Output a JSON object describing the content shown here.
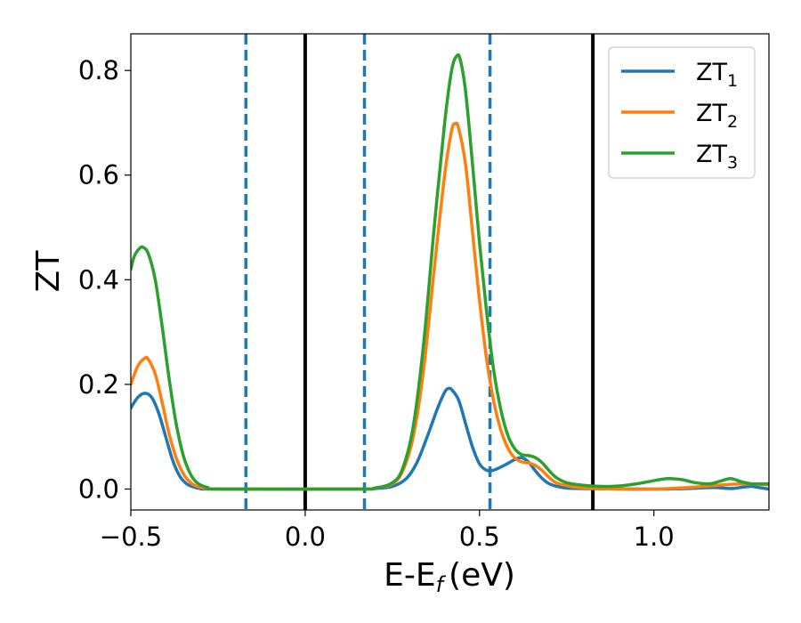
{
  "chart_data": {
    "type": "line",
    "xlabel": "E-E",
    "xlabel_sub": "f",
    "xlabel_unit": "(eV)",
    "ylabel": "ZT",
    "xlim": [
      -0.5,
      1.33
    ],
    "ylim": [
      -0.04,
      0.87
    ],
    "xticks": [
      -0.5,
      0.0,
      0.5,
      1.0
    ],
    "xtick_labels": [
      "−0.5",
      "0.0",
      "0.5",
      "1.0"
    ],
    "yticks": [
      0.0,
      0.2,
      0.4,
      0.6,
      0.8
    ],
    "ytick_labels": [
      "0.0",
      "0.2",
      "0.4",
      "0.6",
      "0.8"
    ],
    "grid": false,
    "legend_position": "top-right",
    "vlines": [
      {
        "x": 0.0,
        "style": "solid",
        "color": "#000000"
      },
      {
        "x": 0.825,
        "style": "solid",
        "color": "#000000"
      },
      {
        "x": -0.17,
        "style": "dashed",
        "color": "#1f77b4"
      },
      {
        "x": 0.17,
        "style": "dashed",
        "color": "#1f77b4"
      },
      {
        "x": 0.53,
        "style": "dashed",
        "color": "#1f77b4"
      }
    ],
    "series": [
      {
        "name": "ZT",
        "sub": "1",
        "color": "#1f77b4",
        "points": [
          [
            -0.5,
            0.155
          ],
          [
            -0.48,
            0.175
          ],
          [
            -0.46,
            0.183
          ],
          [
            -0.44,
            0.175
          ],
          [
            -0.42,
            0.145
          ],
          [
            -0.4,
            0.1
          ],
          [
            -0.38,
            0.055
          ],
          [
            -0.36,
            0.025
          ],
          [
            -0.34,
            0.01
          ],
          [
            -0.32,
            0.004
          ],
          [
            -0.3,
            0.001
          ],
          [
            -0.25,
            0.0
          ],
          [
            0.15,
            0.0
          ],
          [
            0.2,
            0.001
          ],
          [
            0.25,
            0.005
          ],
          [
            0.29,
            0.02
          ],
          [
            0.32,
            0.05
          ],
          [
            0.35,
            0.1
          ],
          [
            0.38,
            0.155
          ],
          [
            0.4,
            0.185
          ],
          [
            0.41,
            0.192
          ],
          [
            0.42,
            0.19
          ],
          [
            0.44,
            0.17
          ],
          [
            0.46,
            0.125
          ],
          [
            0.48,
            0.08
          ],
          [
            0.5,
            0.048
          ],
          [
            0.52,
            0.036
          ],
          [
            0.54,
            0.036
          ],
          [
            0.57,
            0.045
          ],
          [
            0.6,
            0.056
          ],
          [
            0.62,
            0.06
          ],
          [
            0.64,
            0.052
          ],
          [
            0.66,
            0.035
          ],
          [
            0.68,
            0.02
          ],
          [
            0.7,
            0.01
          ],
          [
            0.73,
            0.004
          ],
          [
            0.78,
            0.001
          ],
          [
            1.0,
            0.0
          ],
          [
            1.1,
            0.001
          ],
          [
            1.17,
            0.003
          ],
          [
            1.22,
            0.001
          ],
          [
            1.26,
            0.004
          ],
          [
            1.28,
            0.005
          ],
          [
            1.3,
            0.003
          ],
          [
            1.33,
            0.0
          ]
        ]
      },
      {
        "name": "ZT",
        "sub": "2",
        "color": "#ff7f0e",
        "points": [
          [
            -0.5,
            0.2
          ],
          [
            -0.48,
            0.235
          ],
          [
            -0.46,
            0.25
          ],
          [
            -0.45,
            0.248
          ],
          [
            -0.43,
            0.22
          ],
          [
            -0.41,
            0.165
          ],
          [
            -0.39,
            0.105
          ],
          [
            -0.37,
            0.06
          ],
          [
            -0.35,
            0.03
          ],
          [
            -0.33,
            0.013
          ],
          [
            -0.31,
            0.005
          ],
          [
            -0.28,
            0.001
          ],
          [
            -0.24,
            0.0
          ],
          [
            0.15,
            0.0
          ],
          [
            0.2,
            0.002
          ],
          [
            0.25,
            0.01
          ],
          [
            0.28,
            0.035
          ],
          [
            0.31,
            0.1
          ],
          [
            0.34,
            0.23
          ],
          [
            0.37,
            0.42
          ],
          [
            0.4,
            0.6
          ],
          [
            0.42,
            0.685
          ],
          [
            0.43,
            0.698
          ],
          [
            0.44,
            0.69
          ],
          [
            0.46,
            0.62
          ],
          [
            0.48,
            0.49
          ],
          [
            0.5,
            0.36
          ],
          [
            0.52,
            0.25
          ],
          [
            0.54,
            0.17
          ],
          [
            0.56,
            0.115
          ],
          [
            0.58,
            0.08
          ],
          [
            0.6,
            0.06
          ],
          [
            0.62,
            0.052
          ],
          [
            0.64,
            0.05
          ],
          [
            0.66,
            0.045
          ],
          [
            0.68,
            0.035
          ],
          [
            0.7,
            0.022
          ],
          [
            0.72,
            0.012
          ],
          [
            0.76,
            0.005
          ],
          [
            0.8,
            0.002
          ],
          [
            0.9,
            0.0
          ],
          [
            1.0,
            0.0
          ],
          [
            1.1,
            0.003
          ],
          [
            1.2,
            0.008
          ],
          [
            1.26,
            0.01
          ],
          [
            1.33,
            0.008
          ]
        ]
      },
      {
        "name": "ZT",
        "sub": "3",
        "color": "#2ca02c",
        "points": [
          [
            -0.5,
            0.42
          ],
          [
            -0.49,
            0.445
          ],
          [
            -0.475,
            0.46
          ],
          [
            -0.465,
            0.462
          ],
          [
            -0.45,
            0.45
          ],
          [
            -0.43,
            0.4
          ],
          [
            -0.41,
            0.31
          ],
          [
            -0.39,
            0.21
          ],
          [
            -0.37,
            0.125
          ],
          [
            -0.35,
            0.065
          ],
          [
            -0.33,
            0.03
          ],
          [
            -0.31,
            0.012
          ],
          [
            -0.28,
            0.003
          ],
          [
            -0.24,
            0.0
          ],
          [
            0.15,
            0.0
          ],
          [
            0.2,
            0.002
          ],
          [
            0.25,
            0.012
          ],
          [
            0.28,
            0.04
          ],
          [
            0.31,
            0.12
          ],
          [
            0.34,
            0.28
          ],
          [
            0.37,
            0.5
          ],
          [
            0.4,
            0.7
          ],
          [
            0.42,
            0.8
          ],
          [
            0.435,
            0.828
          ],
          [
            0.445,
            0.82
          ],
          [
            0.46,
            0.76
          ],
          [
            0.48,
            0.62
          ],
          [
            0.5,
            0.47
          ],
          [
            0.52,
            0.34
          ],
          [
            0.54,
            0.23
          ],
          [
            0.56,
            0.155
          ],
          [
            0.58,
            0.105
          ],
          [
            0.6,
            0.078
          ],
          [
            0.62,
            0.066
          ],
          [
            0.64,
            0.064
          ],
          [
            0.66,
            0.06
          ],
          [
            0.68,
            0.05
          ],
          [
            0.7,
            0.035
          ],
          [
            0.72,
            0.022
          ],
          [
            0.75,
            0.012
          ],
          [
            0.8,
            0.007
          ],
          [
            0.85,
            0.005
          ],
          [
            0.9,
            0.006
          ],
          [
            0.95,
            0.01
          ],
          [
            1.0,
            0.016
          ],
          [
            1.04,
            0.02
          ],
          [
            1.08,
            0.018
          ],
          [
            1.12,
            0.012
          ],
          [
            1.16,
            0.01
          ],
          [
            1.19,
            0.015
          ],
          [
            1.22,
            0.02
          ],
          [
            1.25,
            0.014
          ],
          [
            1.28,
            0.01
          ],
          [
            1.33,
            0.01
          ]
        ]
      }
    ]
  }
}
